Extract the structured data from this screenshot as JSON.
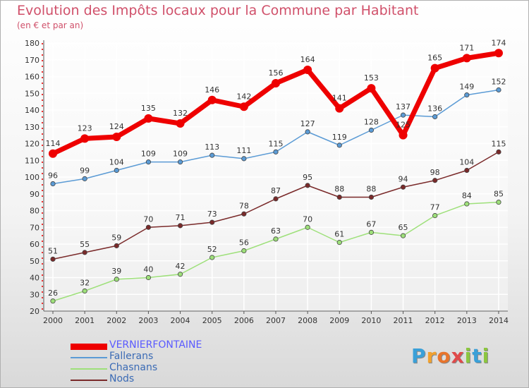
{
  "title": "Evolution des Impôts locaux pour la Commune par Habitant",
  "subtitle": "(en € et par an)",
  "brand": {
    "letters": [
      "P",
      "r",
      "o",
      "x",
      "i",
      "t",
      "i"
    ],
    "colors": [
      "#3aa0d8",
      "#f2a12e",
      "#e8742c",
      "#e04a4a",
      "#8cc63f",
      "#3aa0d8",
      "#8cc63f"
    ]
  },
  "chart_data": {
    "type": "line",
    "title": "Evolution des Impôts locaux pour la Commune par Habitant",
    "ylabel": "(en € et par an)",
    "xlabel": "",
    "ylim": [
      20,
      180
    ],
    "yticks": [
      20,
      30,
      40,
      50,
      60,
      70,
      80,
      90,
      100,
      110,
      120,
      130,
      140,
      150,
      160,
      170,
      180
    ],
    "x": [
      "2000",
      "2001",
      "2002",
      "2003",
      "2004",
      "2005",
      "2006",
      "2007",
      "2008",
      "2009",
      "2010",
      "2011",
      "2012",
      "2013",
      "2014"
    ],
    "grid": true,
    "legend_position": "bottom-left",
    "series": [
      {
        "name": "VERNIERFONTAINE",
        "color": "#ee0000",
        "width": "thick",
        "values": [
          114,
          123,
          124,
          135,
          132,
          146,
          142,
          156,
          164,
          141,
          153,
          125,
          165,
          171,
          174
        ]
      },
      {
        "name": "Fallerans",
        "color": "#5b9bd5",
        "width": "thin",
        "values": [
          96,
          99,
          104,
          109,
          109,
          113,
          111,
          115,
          127,
          119,
          128,
          137,
          136,
          149,
          152
        ]
      },
      {
        "name": "Chasnans",
        "color": "#9ee07a",
        "width": "thin",
        "values": [
          26,
          32,
          39,
          40,
          42,
          52,
          56,
          63,
          70,
          61,
          67,
          65,
          77,
          84,
          85
        ]
      },
      {
        "name": "Nods",
        "color": "#7a2a2a",
        "width": "thin",
        "values": [
          51,
          55,
          59,
          70,
          71,
          73,
          78,
          87,
          95,
          88,
          88,
          94,
          98,
          104,
          115
        ]
      }
    ]
  }
}
